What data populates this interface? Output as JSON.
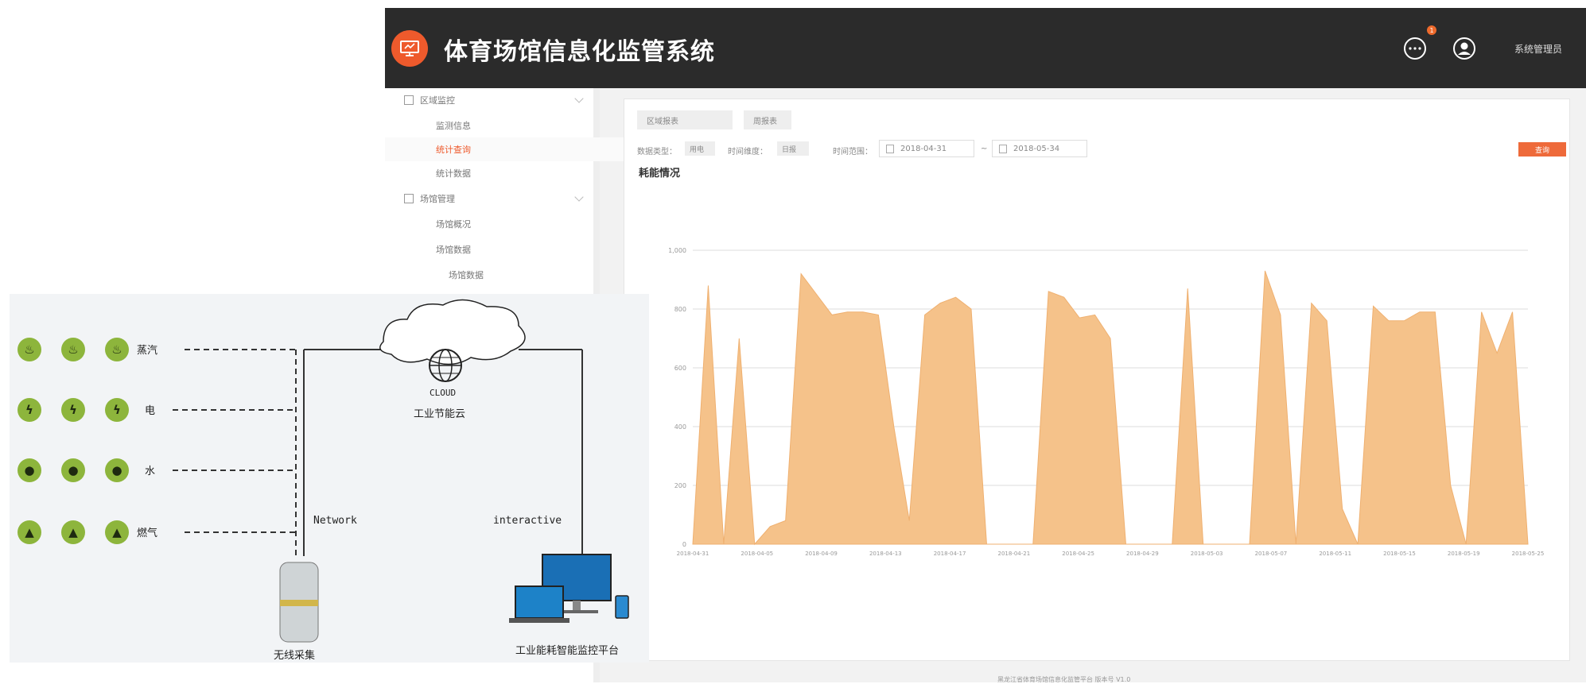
{
  "app": {
    "title": "体育场馆信息化监管系统",
    "user": "系统管理员",
    "badge_count": "1",
    "accent": "#ee5a2c"
  },
  "sidebar": {
    "items": [
      {
        "label": "区域监控"
      },
      {
        "label": "监测信息"
      },
      {
        "label": "统计查询"
      },
      {
        "label": "统计数据"
      },
      {
        "label": "场馆管理"
      },
      {
        "label": "场馆概况"
      },
      {
        "label": "场馆数据"
      },
      {
        "label": "场馆数据"
      }
    ]
  },
  "filters": {
    "tab1": "区域报表",
    "tab2": "周报表",
    "type_label": "数据类型：",
    "type_value": "用电",
    "granularity_label": "时间维度：",
    "granularity_value": "日报",
    "range_label": "时间范围：",
    "start_date": "2018-04-31",
    "end_date": "2018-05-34",
    "query_label": "查询"
  },
  "chart_title": "耗能情况",
  "footer": "黑龙江省体育场馆信息化监管平台   版本号 V1.0",
  "chart_data": {
    "type": "area",
    "x_tick_labels": [
      "2018-04-31",
      "2018-04-05",
      "2018-04-09",
      "2018-04-13",
      "2018-04-17",
      "2018-04-21",
      "2018-04-25",
      "2018-04-29",
      "2018-05-03",
      "2018-05-07",
      "2018-05-11",
      "2018-05-15",
      "2018-05-19",
      "2018-05-25"
    ],
    "y_tick_labels": [
      "0",
      "200",
      "400",
      "600",
      "800",
      "1,000"
    ],
    "ylim": [
      0,
      1000
    ],
    "color": "#f5c28a",
    "values": [
      0,
      880,
      0,
      700,
      0,
      60,
      80,
      920,
      850,
      780,
      790,
      790,
      780,
      400,
      80,
      780,
      820,
      840,
      800,
      0,
      0,
      0,
      0,
      860,
      840,
      770,
      780,
      700,
      0,
      0,
      0,
      0,
      870,
      0,
      0,
      0,
      0,
      930,
      780,
      0,
      820,
      760,
      120,
      0,
      810,
      760,
      760,
      790,
      790,
      200,
      0,
      790,
      650,
      790,
      0
    ]
  },
  "diagram": {
    "resources": [
      {
        "label": "蒸汽",
        "glyph": "♨"
      },
      {
        "label": "电",
        "glyph": "ϟ"
      },
      {
        "label": "水",
        "glyph": "●"
      },
      {
        "label": "燃气",
        "glyph": "▲"
      }
    ],
    "cloud_title": "CLOUD",
    "cloud_label": "工业节能云",
    "network_label": "Network",
    "interactive_label": "interactive",
    "collector_label": "无线采集",
    "platform_label": "工业能耗智能监控平台"
  }
}
